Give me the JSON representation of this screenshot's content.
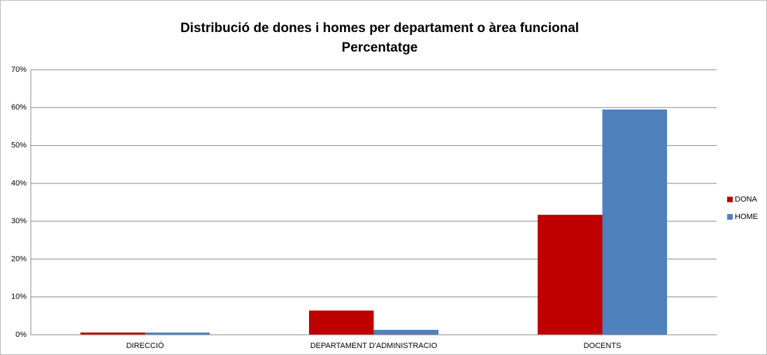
{
  "chart_data": {
    "type": "bar",
    "title": "Distribució de dones i homes per departament o àrea funcional",
    "subtitle": "Percentatge",
    "categories": [
      "DIRECCIÓ",
      "DEPARTAMENT D'ADMINISTRACIO",
      "DOCENTS"
    ],
    "series": [
      {
        "name": "DONA",
        "color": "#c00000",
        "values": [
          0.6,
          6.4,
          31.7
        ]
      },
      {
        "name": "HOME",
        "color": "#4f81bd",
        "values": [
          0.6,
          1.3,
          59.5
        ]
      }
    ],
    "ylim": [
      0,
      70
    ],
    "yticks": [
      {
        "value": 0,
        "label": "0%"
      },
      {
        "value": 10,
        "label": "10%"
      },
      {
        "value": 20,
        "label": "20%"
      },
      {
        "value": 30,
        "label": "30%"
      },
      {
        "value": 40,
        "label": "40%"
      },
      {
        "value": 50,
        "label": "50%"
      },
      {
        "value": 60,
        "label": "60%"
      },
      {
        "value": 70,
        "label": "70%"
      }
    ],
    "grid": true,
    "legend": "right"
  }
}
